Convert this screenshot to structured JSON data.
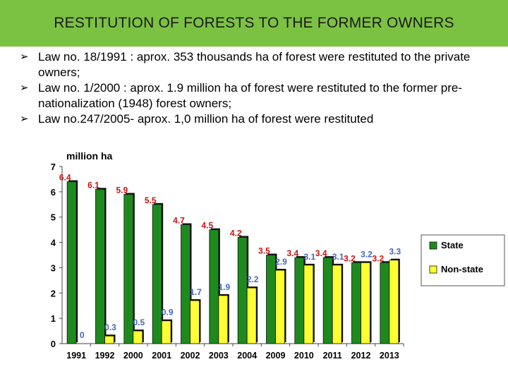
{
  "title": "RESTITUTION OF FORESTS TO THE FORMER OWNERS",
  "bullets": [
    "Law no. 18/1991 : aprox. 353 thousands ha  of forest were restituted to the private owners;",
    "Law no. 1/2000 : aprox. 1.9 million ha of forest were restituted to the former pre-nationalization (1948) forest owners;",
    "Law no.247/2005- aprox. 1,0 million ha of forest were restituted"
  ],
  "bullet_icon": "arrowhead-right-icon",
  "chart_data": {
    "type": "bar",
    "ylabel": "million ha",
    "ylim": [
      0,
      7
    ],
    "yticks": [
      "0",
      "1",
      "2",
      "3",
      "4",
      "5",
      "6",
      "7"
    ],
    "grid": false,
    "legend_position": "right",
    "categories": [
      "1991",
      "1992",
      "2000",
      "2001",
      "2002",
      "2003",
      "2004",
      "2009",
      "2010",
      "2011",
      "2012",
      "2013"
    ],
    "series": [
      {
        "name": "State",
        "color": "#1e8a1e",
        "values": [
          6.4,
          6.1,
          5.9,
          5.5,
          4.7,
          4.5,
          4.2,
          3.5,
          3.4,
          3.4,
          3.2,
          3.2
        ],
        "labels": [
          "6.4",
          "6.1",
          "5.9",
          "5.5",
          "4.7",
          "4.5",
          "4.2",
          "3.5",
          "3.4",
          "3.4",
          "3.2",
          "3.2"
        ]
      },
      {
        "name": "Non-state",
        "color": "#ffff33",
        "values": [
          0,
          0.3,
          0.5,
          0.9,
          1.7,
          1.9,
          2.2,
          2.9,
          3.1,
          3.1,
          3.2,
          3.3
        ],
        "labels": [
          "0",
          "0.3",
          "0.5",
          "0.9",
          "1.7",
          "1.9",
          "2.2",
          "2.9",
          "3.1",
          "3.1",
          "3.2",
          "3.3"
        ]
      }
    ],
    "label_colors": {
      "State": "#cc1111",
      "Non-state": "#4466bb"
    }
  }
}
